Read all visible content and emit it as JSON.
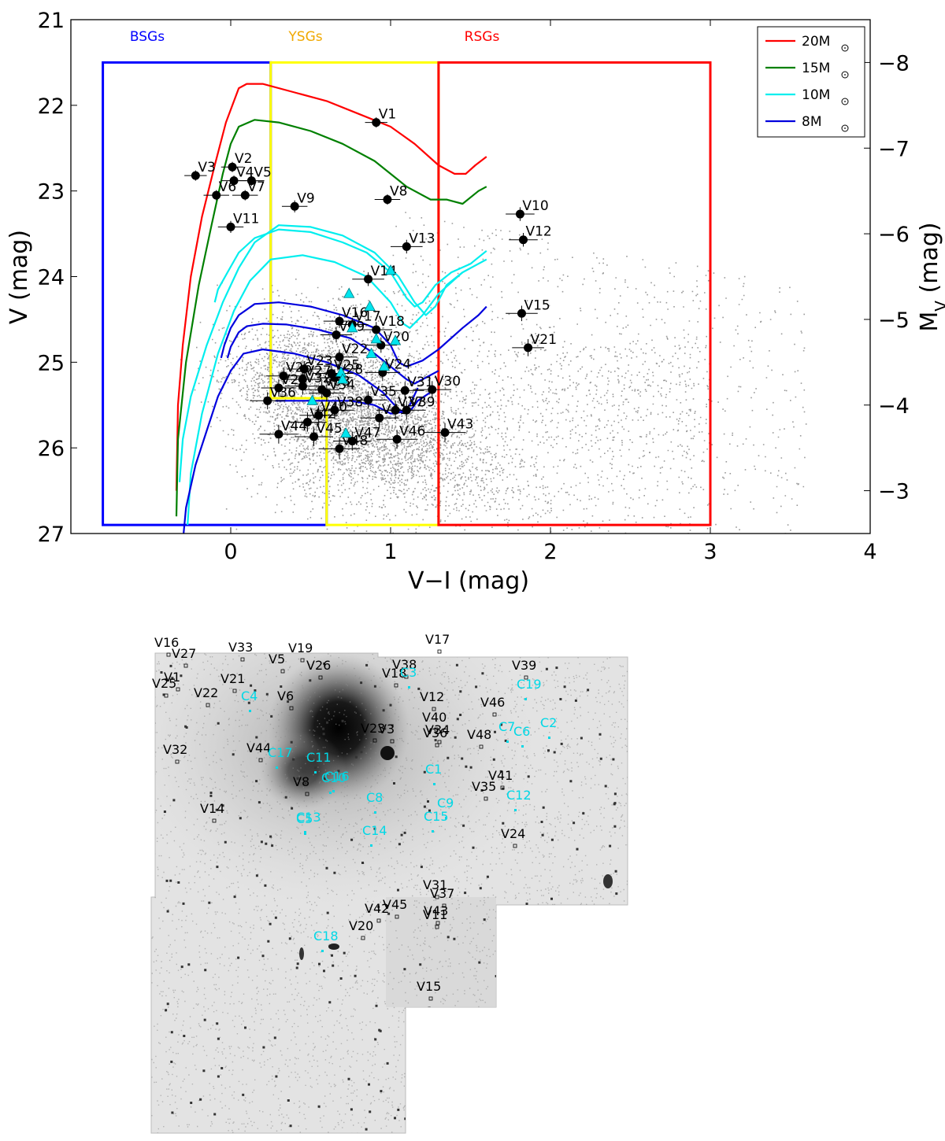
{
  "chart_data": {
    "type": "scatter",
    "title": "",
    "xlabel": "V−I (mag)",
    "ylabel": "V (mag)",
    "y2label": "M_V (mag)",
    "xlim": [
      -1.0,
      4.0
    ],
    "ylim": [
      27.0,
      21.0
    ],
    "xticks": [
      0,
      1,
      2,
      3,
      4
    ],
    "yticks": [
      21,
      22,
      23,
      24,
      25,
      26,
      27
    ],
    "y2ticks": [
      -8,
      -7,
      -6,
      -5,
      -4,
      -3
    ],
    "y2_offset": 30.0,
    "regions": [
      {
        "label": "BSGs",
        "color": "#0000ff",
        "x0": -0.8,
        "x1": 0.6,
        "y_top": 21.5,
        "y_bottom": 26.9,
        "top_x1": 0.25
      },
      {
        "label": "YSGs",
        "color": "#ffd700",
        "x0": 0.25,
        "x1": 1.3,
        "y_top": 21.5,
        "y_bottom": 26.9,
        "bottom_x0": 0.6
      },
      {
        "label": "RSGs",
        "color": "#ff0000",
        "x0": 1.3,
        "x1": 3.0,
        "y_top": 21.5,
        "y_bottom": 26.9
      }
    ],
    "legend": {
      "position": "top-right",
      "entries": [
        {
          "label": "20M",
          "color": "#ff0000"
        },
        {
          "label": "15M",
          "color": "#008000"
        },
        {
          "label": "10M",
          "color": "#00eeee"
        },
        {
          "label": "8M",
          "color": "#0000dd"
        }
      ]
    },
    "tracks": [
      {
        "name": "20M",
        "color": "#ff0000",
        "x": [
          -0.34,
          -0.33,
          -0.3,
          -0.25,
          -0.18,
          -0.1,
          -0.03,
          0.02,
          0.05,
          0.1,
          0.2,
          0.4,
          0.6,
          0.8,
          1.0,
          1.15,
          1.3,
          1.4,
          1.47,
          1.53,
          1.6
        ],
        "y": [
          26.5,
          25.5,
          24.8,
          24.0,
          23.3,
          22.7,
          22.2,
          21.95,
          21.8,
          21.75,
          21.75,
          21.85,
          21.95,
          22.1,
          22.25,
          22.45,
          22.7,
          22.8,
          22.8,
          22.7,
          22.6
        ]
      },
      {
        "name": "15M",
        "color": "#008000",
        "x": [
          -0.34,
          -0.33,
          -0.28,
          -0.2,
          -0.12,
          -0.05,
          0.0,
          0.05,
          0.15,
          0.3,
          0.5,
          0.7,
          0.9,
          1.1,
          1.25,
          1.35,
          1.45,
          1.55,
          1.6
        ],
        "y": [
          26.8,
          25.9,
          25.0,
          24.1,
          23.4,
          22.8,
          22.45,
          22.25,
          22.17,
          22.2,
          22.3,
          22.45,
          22.65,
          22.95,
          23.1,
          23.1,
          23.15,
          23.0,
          22.95
        ]
      },
      {
        "name": "10M_a",
        "color": "#00eeee",
        "x": [
          -0.32,
          -0.3,
          -0.25,
          -0.15,
          -0.05,
          0.05,
          0.15,
          0.3,
          0.5,
          0.7,
          0.9,
          1.05,
          1.15,
          1.22,
          1.28,
          1.35,
          1.45,
          1.6
        ],
        "y": [
          26.4,
          25.9,
          25.4,
          24.8,
          24.3,
          23.9,
          23.6,
          23.4,
          23.42,
          23.52,
          23.72,
          24.0,
          24.3,
          24.45,
          24.35,
          24.1,
          23.95,
          23.8
        ]
      },
      {
        "name": "10M_b",
        "color": "#00eeee",
        "x": [
          -0.1,
          -0.08,
          -0.02,
          0.05,
          0.15,
          0.3,
          0.5,
          0.7,
          0.85,
          1.0,
          1.1,
          1.15,
          1.2,
          1.28,
          1.38,
          1.5,
          1.6
        ],
        "y": [
          24.3,
          24.15,
          23.95,
          23.72,
          23.55,
          23.45,
          23.48,
          23.6,
          23.72,
          23.95,
          24.25,
          24.35,
          24.3,
          24.1,
          23.95,
          23.85,
          23.7
        ]
      },
      {
        "name": "10M_c",
        "color": "#00eeee",
        "x": [
          -0.27,
          -0.25,
          -0.18,
          -0.08,
          0.02,
          0.12,
          0.25,
          0.45,
          0.65,
          0.85,
          1.0,
          1.08,
          1.12,
          1.2,
          1.3,
          1.45
        ],
        "y": [
          26.9,
          26.3,
          25.6,
          24.9,
          24.4,
          24.05,
          23.8,
          23.75,
          23.83,
          24.0,
          24.3,
          24.55,
          24.6,
          24.45,
          24.2,
          23.95
        ]
      },
      {
        "name": "8M_a",
        "color": "#0000dd",
        "x": [
          -0.06,
          -0.04,
          0.0,
          0.05,
          0.15,
          0.3,
          0.5,
          0.7,
          0.9,
          1.0,
          1.05,
          1.1,
          1.2,
          1.3,
          1.45,
          1.55,
          1.6
        ],
        "y": [
          24.95,
          24.8,
          24.6,
          24.45,
          24.32,
          24.3,
          24.35,
          24.45,
          24.6,
          24.8,
          25.0,
          25.05,
          24.98,
          24.85,
          24.6,
          24.45,
          24.35
        ]
      },
      {
        "name": "8M_b",
        "color": "#0000dd",
        "x": [
          -0.02,
          0.0,
          0.05,
          0.1,
          0.2,
          0.35,
          0.55,
          0.75,
          0.9,
          1.0,
          1.1,
          1.15,
          1.2,
          1.3
        ],
        "y": [
          24.95,
          24.82,
          24.65,
          24.58,
          24.55,
          24.56,
          24.62,
          24.72,
          24.9,
          25.05,
          25.2,
          25.25,
          25.2,
          25.1
        ]
      },
      {
        "name": "8M_c",
        "color": "#0000dd",
        "x": [
          -0.3,
          -0.28,
          -0.22,
          -0.15,
          -0.08,
          0.0,
          0.08,
          0.2,
          0.4,
          0.6,
          0.8,
          0.95,
          1.05,
          1.1,
          1.13,
          1.17,
          1.25
        ],
        "y": [
          27.1,
          26.7,
          26.2,
          25.8,
          25.4,
          25.1,
          24.9,
          24.85,
          24.9,
          25.0,
          25.15,
          25.35,
          25.55,
          25.6,
          25.55,
          25.45,
          25.35
        ]
      },
      {
        "name": "8M_d",
        "color": "#0000dd",
        "x": [
          0.28,
          0.45,
          0.6,
          0.75,
          0.9,
          1.0,
          1.08,
          1.12,
          1.17
        ],
        "y": [
          25.45,
          25.45,
          25.45,
          25.45,
          25.5,
          25.6,
          25.58,
          25.5,
          25.3
        ]
      }
    ],
    "stars": [
      {
        "label": "V1",
        "x": 0.91,
        "y": 22.2,
        "ex": 0.07,
        "ey": 0.06
      },
      {
        "label": "V2",
        "x": 0.01,
        "y": 22.72,
        "ex": 0.07,
        "ey": 0.06
      },
      {
        "label": "V3",
        "x": -0.22,
        "y": 22.82,
        "ex": 0.07,
        "ey": 0.06
      },
      {
        "label": "V4",
        "x": 0.02,
        "y": 22.88,
        "ex": 0.08,
        "ey": 0.06
      },
      {
        "label": "V5",
        "x": 0.13,
        "y": 22.88,
        "ex": 0.08,
        "ey": 0.06
      },
      {
        "label": "V6",
        "x": -0.09,
        "y": 23.05,
        "ex": 0.08,
        "ey": 0.06
      },
      {
        "label": "V7",
        "x": 0.09,
        "y": 23.05,
        "ex": 0.08,
        "ey": 0.06
      },
      {
        "label": "V8",
        "x": 0.98,
        "y": 23.1,
        "ex": 0.08,
        "ey": 0.06
      },
      {
        "label": "V9",
        "x": 0.4,
        "y": 23.18,
        "ex": 0.08,
        "ey": 0.07
      },
      {
        "label": "V10",
        "x": 1.81,
        "y": 23.27,
        "ex": 0.09,
        "ey": 0.08
      },
      {
        "label": "V11",
        "x": 0.0,
        "y": 23.42,
        "ex": 0.08,
        "ey": 0.07
      },
      {
        "label": "V12",
        "x": 1.83,
        "y": 23.57,
        "ex": 0.09,
        "ey": 0.08
      },
      {
        "label": "V13",
        "x": 1.1,
        "y": 23.65,
        "ex": 0.1,
        "ey": 0.08
      },
      {
        "label": "V14",
        "x": 0.86,
        "y": 24.03,
        "ex": 0.1,
        "ey": 0.08
      },
      {
        "label": "V15",
        "x": 1.82,
        "y": 24.43,
        "ex": 0.1,
        "ey": 0.09
      },
      {
        "label": "V16",
        "x": 0.68,
        "y": 24.52,
        "ex": 0.1,
        "ey": 0.08
      },
      {
        "label": "V17",
        "x": 0.76,
        "y": 24.56,
        "ex": 0.1,
        "ey": 0.08
      },
      {
        "label": "V18",
        "x": 0.91,
        "y": 24.62,
        "ex": 0.1,
        "ey": 0.09
      },
      {
        "label": "V19",
        "x": 0.66,
        "y": 24.68,
        "ex": 0.1,
        "ey": 0.09
      },
      {
        "label": "V20",
        "x": 0.94,
        "y": 24.8,
        "ex": 0.1,
        "ey": 0.09
      },
      {
        "label": "V21",
        "x": 1.86,
        "y": 24.83,
        "ex": 0.1,
        "ey": 0.1
      },
      {
        "label": "V22",
        "x": 0.68,
        "y": 24.94,
        "ex": 0.11,
        "ey": 0.09
      },
      {
        "label": "V23",
        "x": 0.46,
        "y": 25.08,
        "ex": 0.11,
        "ey": 0.09
      },
      {
        "label": "V24",
        "x": 0.95,
        "y": 25.12,
        "ex": 0.11,
        "ey": 0.1
      },
      {
        "label": "V25",
        "x": 0.63,
        "y": 25.13,
        "ex": 0.11,
        "ey": 0.09
      },
      {
        "label": "V26",
        "x": 0.33,
        "y": 25.16,
        "ex": 0.11,
        "ey": 0.1
      },
      {
        "label": "V27",
        "x": 0.45,
        "y": 25.2,
        "ex": 0.11,
        "ey": 0.1
      },
      {
        "label": "V28",
        "x": 0.65,
        "y": 25.18,
        "ex": 0.11,
        "ey": 0.1
      },
      {
        "label": "V29",
        "x": 0.3,
        "y": 25.3,
        "ex": 0.11,
        "ey": 0.1
      },
      {
        "label": "V30",
        "x": 1.26,
        "y": 25.32,
        "ex": 0.12,
        "ey": 0.1
      },
      {
        "label": "V31",
        "x": 1.09,
        "y": 25.33,
        "ex": 0.12,
        "ey": 0.1
      },
      {
        "label": "V32",
        "x": 0.45,
        "y": 25.28,
        "ex": 0.11,
        "ey": 0.1
      },
      {
        "label": "V33",
        "x": 0.57,
        "y": 25.32,
        "ex": 0.11,
        "ey": 0.1
      },
      {
        "label": "V34",
        "x": 0.6,
        "y": 25.36,
        "ex": 0.11,
        "ey": 0.1
      },
      {
        "label": "V35",
        "x": 0.86,
        "y": 25.44,
        "ex": 0.12,
        "ey": 0.1
      },
      {
        "label": "V36",
        "x": 0.23,
        "y": 25.45,
        "ex": 0.11,
        "ey": 0.1
      },
      {
        "label": "V37",
        "x": 1.03,
        "y": 25.56,
        "ex": 0.12,
        "ey": 0.11
      },
      {
        "label": "V38",
        "x": 0.65,
        "y": 25.56,
        "ex": 0.12,
        "ey": 0.1
      },
      {
        "label": "V39",
        "x": 1.1,
        "y": 25.56,
        "ex": 0.12,
        "ey": 0.11
      },
      {
        "label": "V40",
        "x": 0.55,
        "y": 25.62,
        "ex": 0.12,
        "ey": 0.11
      },
      {
        "label": "V41",
        "x": 0.93,
        "y": 25.65,
        "ex": 0.12,
        "ey": 0.11
      },
      {
        "label": "V42",
        "x": 0.48,
        "y": 25.7,
        "ex": 0.12,
        "ey": 0.11
      },
      {
        "label": "V43",
        "x": 1.34,
        "y": 25.82,
        "ex": 0.13,
        "ey": 0.11
      },
      {
        "label": "V44",
        "x": 0.3,
        "y": 25.84,
        "ex": 0.12,
        "ey": 0.11
      },
      {
        "label": "V45",
        "x": 0.52,
        "y": 25.87,
        "ex": 0.12,
        "ey": 0.11
      },
      {
        "label": "V46",
        "x": 1.04,
        "y": 25.9,
        "ex": 0.13,
        "ey": 0.11
      },
      {
        "label": "V47",
        "x": 0.76,
        "y": 25.92,
        "ex": 0.12,
        "ey": 0.11
      },
      {
        "label": "V48",
        "x": 0.68,
        "y": 26.01,
        "ex": 0.13,
        "ey": 0.12
      }
    ],
    "cepheids": [
      {
        "x": 0.74,
        "y": 24.2
      },
      {
        "x": 1.0,
        "y": 23.93
      },
      {
        "x": 0.87,
        "y": 24.35
      },
      {
        "x": 0.76,
        "y": 24.6
      },
      {
        "x": 0.91,
        "y": 24.73
      },
      {
        "x": 1.03,
        "y": 24.75
      },
      {
        "x": 0.96,
        "y": 25.05
      },
      {
        "x": 0.88,
        "y": 24.9
      },
      {
        "x": 0.69,
        "y": 25.12
      },
      {
        "x": 0.51,
        "y": 25.45
      },
      {
        "x": 0.72,
        "y": 25.83
      },
      {
        "x": 0.7,
        "y": 25.2
      }
    ],
    "background_points": "~8000 field stars (grey dots), spread x≈-0.6–3.6, y≈22–27, densest near x≈0.6, y≈25.5"
  },
  "image_panel": {
    "description_labels": {
      "black": [
        {
          "label": "V16"
        },
        {
          "label": "V27"
        },
        {
          "label": "V33"
        },
        {
          "label": "V19"
        },
        {
          "label": "V17"
        },
        {
          "label": "V1"
        },
        {
          "label": "V25"
        },
        {
          "label": "V5"
        },
        {
          "label": "V26"
        },
        {
          "label": "V38"
        },
        {
          "label": "V39"
        },
        {
          "label": "V21"
        },
        {
          "label": "V22"
        },
        {
          "label": "V6"
        },
        {
          "label": "V18"
        },
        {
          "label": "V12"
        },
        {
          "label": "V46"
        },
        {
          "label": "V40"
        },
        {
          "label": "V34"
        },
        {
          "label": "V36"
        },
        {
          "label": "V48"
        },
        {
          "label": "V32"
        },
        {
          "label": "V44"
        },
        {
          "label": "V23"
        },
        {
          "label": "V8"
        },
        {
          "label": "V41"
        },
        {
          "label": "V35"
        },
        {
          "label": "V14"
        },
        {
          "label": "V24"
        },
        {
          "label": "V3"
        },
        {
          "label": "V31"
        },
        {
          "label": "V37"
        },
        {
          "label": "V42"
        },
        {
          "label": "V45"
        },
        {
          "label": "V43"
        },
        {
          "label": "V11"
        },
        {
          "label": "V20"
        },
        {
          "label": "V15"
        }
      ],
      "cyan": [
        {
          "label": "C3"
        },
        {
          "label": "C19"
        },
        {
          "label": "C4"
        },
        {
          "label": "C7"
        },
        {
          "label": "C6"
        },
        {
          "label": "C2"
        },
        {
          "label": "C17"
        },
        {
          "label": "C11"
        },
        {
          "label": "C10"
        },
        {
          "label": "C1"
        },
        {
          "label": "C8"
        },
        {
          "label": "C9"
        },
        {
          "label": "C12"
        },
        {
          "label": "C13"
        },
        {
          "label": "C5"
        },
        {
          "label": "C15"
        },
        {
          "label": "C14"
        },
        {
          "label": "C16"
        },
        {
          "label": "C18"
        }
      ]
    }
  }
}
